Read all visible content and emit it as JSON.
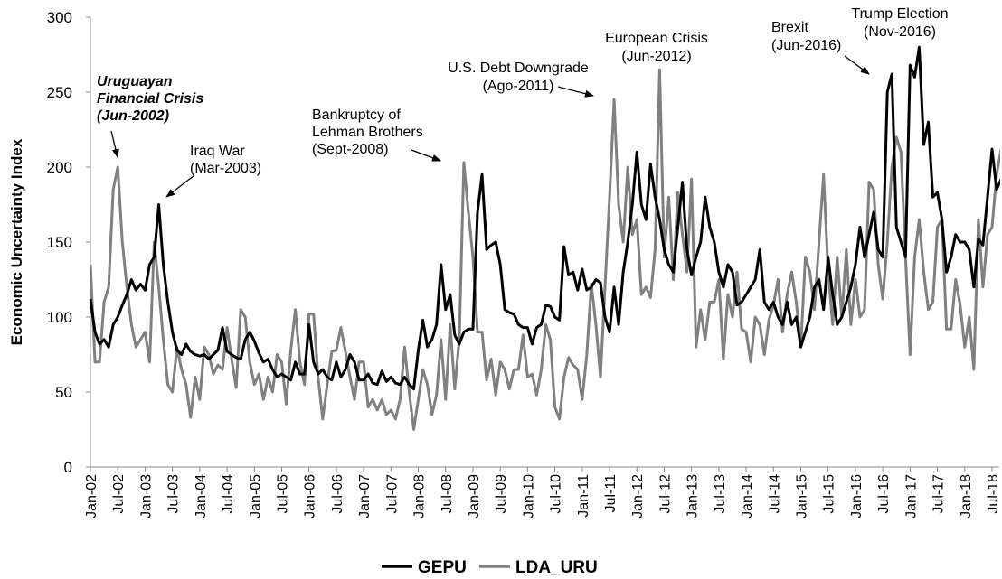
{
  "chart_data": {
    "type": "line",
    "y_label": "Economic Uncertainty Index",
    "categories": [
      "Jan-02",
      null,
      null,
      null,
      null,
      null,
      "Jul-02",
      null,
      null,
      null,
      null,
      null,
      "Jan-03",
      null,
      null,
      null,
      null,
      null,
      "Jul-03",
      null,
      null,
      null,
      null,
      null,
      "Jan-04",
      null,
      null,
      null,
      null,
      null,
      "Jul-04",
      null,
      null,
      null,
      null,
      null,
      "Jan-05",
      null,
      null,
      null,
      null,
      null,
      "Jul-05",
      null,
      null,
      null,
      null,
      null,
      "Jan-06",
      null,
      null,
      null,
      null,
      null,
      "Jul-06",
      null,
      null,
      null,
      null,
      null,
      "Jan-07",
      null,
      null,
      null,
      null,
      null,
      "Jul-07",
      null,
      null,
      null,
      null,
      null,
      "Jan-08",
      null,
      null,
      null,
      null,
      null,
      "Jul-08",
      null,
      null,
      null,
      null,
      null,
      "Jan-09",
      null,
      null,
      null,
      null,
      null,
      "Jul-09",
      null,
      null,
      null,
      null,
      null,
      "Jan-10",
      null,
      null,
      null,
      null,
      null,
      "Jul-10",
      null,
      null,
      null,
      null,
      null,
      "Jan-11",
      null,
      null,
      null,
      null,
      null,
      "Jul-11",
      null,
      null,
      null,
      null,
      null,
      "Jan-12",
      null,
      null,
      null,
      null,
      null,
      "Jul-12",
      null,
      null,
      null,
      null,
      null,
      "Jan-13",
      null,
      null,
      null,
      null,
      null,
      "Jul-13",
      null,
      null,
      null,
      null,
      null,
      "Jan-14",
      null,
      null,
      null,
      null,
      null,
      "Jul-14",
      null,
      null,
      null,
      null,
      null,
      "Jan-15",
      null,
      null,
      null,
      null,
      null,
      "Jul-15",
      null,
      null,
      null,
      null,
      null,
      "Jan-16",
      null,
      null,
      null,
      null,
      null,
      "Jul-16",
      null,
      null,
      null,
      null,
      null,
      "Jan-17",
      null,
      null,
      null,
      null,
      null,
      "Jul-17",
      null,
      null,
      null,
      null,
      null,
      "Jan-18",
      null,
      null,
      null,
      null,
      null,
      "Jul-18",
      null,
      null
    ],
    "series": [
      {
        "name": "GEPU",
        "color": "#000000",
        "values": [
          112,
          90,
          82,
          85,
          80,
          95,
          100,
          108,
          115,
          125,
          118,
          122,
          118,
          135,
          140,
          175,
          135,
          110,
          90,
          78,
          75,
          82,
          77,
          75,
          74,
          75,
          72,
          75,
          78,
          93,
          77,
          75,
          73,
          72,
          85,
          90,
          84,
          76,
          70,
          72,
          65,
          60,
          62,
          60,
          58,
          70,
          62,
          62,
          95,
          70,
          62,
          65,
          60,
          58,
          70,
          60,
          65,
          75,
          70,
          58,
          58,
          62,
          56,
          55,
          64,
          57,
          60,
          56,
          55,
          60,
          55,
          52,
          78,
          98,
          80,
          85,
          95,
          135,
          105,
          115,
          88,
          82,
          90,
          92,
          92,
          170,
          195,
          145,
          148,
          150,
          135,
          105,
          103,
          102,
          95,
          93,
          93,
          82,
          93,
          95,
          108,
          107,
          100,
          98,
          147,
          128,
          130,
          118,
          132,
          118,
          120,
          125,
          123,
          100,
          90,
          120,
          95,
          130,
          150,
          175,
          210,
          175,
          165,
          202,
          180,
          165,
          145,
          135,
          130,
          160,
          190,
          145,
          128,
          140,
          150,
          180,
          160,
          150,
          130,
          120,
          135,
          130,
          108,
          110,
          115,
          120,
          125,
          145,
          110,
          105,
          110,
          100,
          95,
          110,
          95,
          100,
          80,
          90,
          100,
          120,
          125,
          105,
          140,
          115,
          95,
          100,
          110,
          120,
          135,
          160,
          140,
          155,
          170,
          145,
          140,
          250,
          262,
          160,
          150,
          140,
          268,
          260,
          280,
          215,
          230,
          180,
          183,
          165,
          130,
          140,
          155,
          150,
          150,
          145,
          120,
          152,
          148,
          180,
          212,
          185,
          192
        ]
      },
      {
        "name": "LDA_URU",
        "color": "#808080",
        "values": [
          135,
          70,
          70,
          110,
          120,
          185,
          200,
          150,
          120,
          95,
          80,
          85,
          90,
          70,
          150,
          120,
          85,
          55,
          50,
          80,
          65,
          55,
          33,
          60,
          45,
          80,
          75,
          62,
          68,
          65,
          93,
          72,
          53,
          105,
          100,
          70,
          55,
          62,
          45,
          60,
          50,
          75,
          70,
          42,
          78,
          105,
          70,
          55,
          102,
          102,
          60,
          32,
          55,
          77,
          78,
          93,
          77,
          60,
          45,
          70,
          70,
          40,
          45,
          38,
          45,
          35,
          38,
          32,
          45,
          80,
          50,
          25,
          45,
          65,
          55,
          35,
          48,
          85,
          45,
          95,
          52,
          85,
          203,
          170,
          140,
          90,
          90,
          58,
          72,
          48,
          70,
          65,
          52,
          65,
          65,
          88,
          60,
          62,
          48,
          65,
          95,
          85,
          40,
          32,
          60,
          73,
          68,
          65,
          45,
          75,
          122,
          95,
          60,
          120,
          180,
          245,
          175,
          150,
          200,
          155,
          165,
          115,
          120,
          113,
          145,
          265,
          140,
          180,
          125,
          183,
          155,
          130,
          192,
          80,
          105,
          85,
          110,
          110,
          125,
          72,
          115,
          100,
          130,
          92,
          90,
          70,
          100,
          95,
          75,
          98,
          108,
          125,
          90,
          115,
          130,
          110,
          80,
          140,
          130,
          105,
          150,
          195,
          130,
          95,
          140,
          100,
          145,
          95,
          125,
          100,
          105,
          190,
          185,
          135,
          112,
          150,
          200,
          220,
          210,
          140,
          75,
          140,
          165,
          130,
          105,
          110,
          160,
          165,
          92,
          92,
          125,
          108,
          80,
          100,
          65,
          165,
          120,
          155,
          160,
          195,
          212
        ]
      }
    ],
    "ylim": [
      0,
      300
    ],
    "yticks": [
      0,
      50,
      100,
      150,
      200,
      250,
      300
    ],
    "grid": false,
    "legend": "bottom",
    "annotations": [
      {
        "lines": [
          "Uruguayan",
          "Financial Crisis",
          "(Jun-2002)"
        ]
      },
      {
        "lines": [
          "Iraq War",
          "(Mar-2003)"
        ]
      },
      {
        "lines": [
          "Bankruptcy of",
          "Lehman Brothers",
          "(Sept-2008)"
        ]
      },
      {
        "lines": [
          "U.S. Debt Downgrade",
          "(Ago-2011)"
        ]
      },
      {
        "lines": [
          "European Crisis",
          "(Jun-2012)"
        ]
      },
      {
        "lines": [
          "Brexit",
          "(Jun-2016)"
        ]
      },
      {
        "lines": [
          "Trump Election",
          "(Nov-2016)"
        ]
      }
    ]
  }
}
